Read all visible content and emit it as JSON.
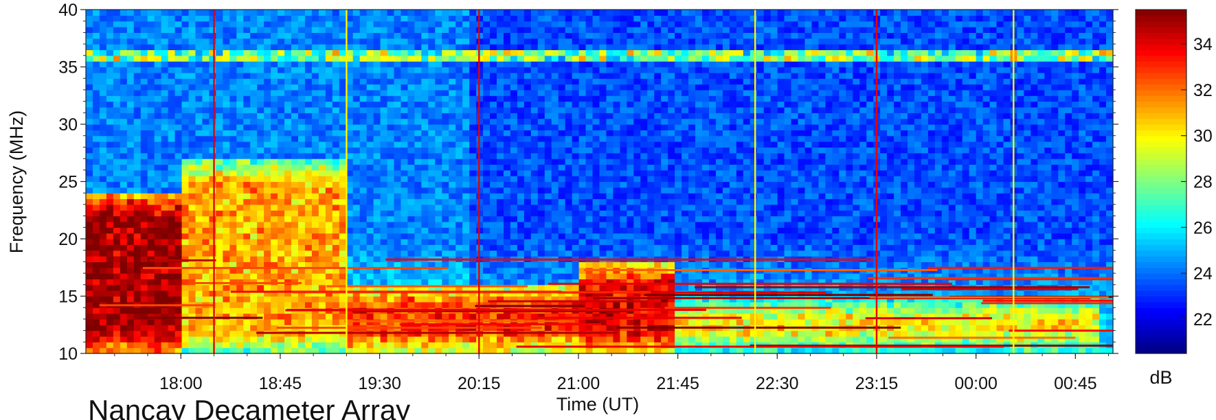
{
  "chart_data": {
    "type": "heatmap",
    "title": "",
    "xlabel": "Time (UT)",
    "ylabel": "Frequency (MHz)",
    "x_tick_labels": [
      "18:00",
      "18:45",
      "19:30",
      "20:15",
      "21:00",
      "21:45",
      "22:30",
      "23:15",
      "00:00",
      "00:45"
    ],
    "x_ticks_minutes_from_midnight": [
      1080,
      1125,
      1170,
      1215,
      1260,
      1305,
      1350,
      1395,
      1440,
      1485
    ],
    "x_range_minutes_from_midnight": [
      1037,
      1502
    ],
    "y_ticks": [
      10,
      15,
      20,
      25,
      30,
      35,
      40
    ],
    "ylim": [
      10,
      40
    ],
    "colorbar": {
      "label": "dB",
      "ticks": [
        22,
        24,
        26,
        28,
        30,
        32,
        34
      ],
      "range": [
        20.5,
        35.5
      ],
      "colormap": [
        "#00007f",
        "#0000ff",
        "#007fff",
        "#00ffff",
        "#7fff7f",
        "#ffff00",
        "#ff7f00",
        "#ff0000",
        "#7f0000"
      ]
    },
    "grid": true,
    "features": [
      {
        "kind": "intense_emission",
        "t_start": "17:15",
        "t_end": "18:00",
        "f_low": 10,
        "f_high": 24,
        "level_db": 35
      },
      {
        "kind": "arc_emission",
        "t_start": "18:00",
        "t_end": "19:15",
        "f_low": 10,
        "f_high": 27,
        "level_db": 31
      },
      {
        "kind": "low_freq_band",
        "t_start": "19:15",
        "t_end": "21:00",
        "f_low": 10,
        "f_high": 16,
        "level_db": 33
      },
      {
        "kind": "intense_emission",
        "t_start": "21:00",
        "t_end": "21:45",
        "f_low": 10,
        "f_high": 18,
        "level_db": 34
      },
      {
        "kind": "low_freq_band",
        "t_start": "21:45",
        "t_end": "00:55",
        "f_low": 10,
        "f_high": 15,
        "level_db": 30
      },
      {
        "kind": "rfi_line",
        "f": 36.2,
        "level_db": 28
      }
    ]
  },
  "footer_text": "Nancay Decameter Array"
}
